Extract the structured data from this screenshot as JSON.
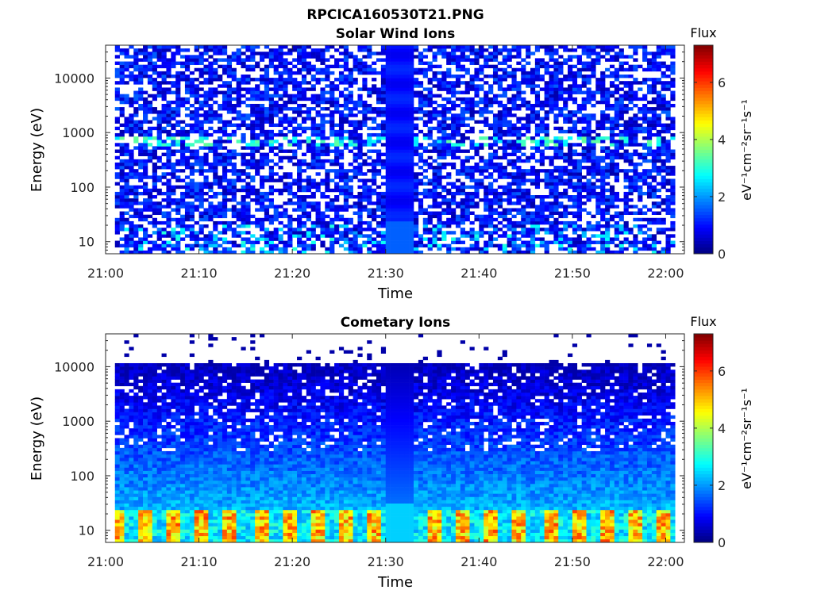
{
  "figure": {
    "title": "RPCICA160530T21.PNG"
  },
  "chart_data": [
    {
      "type": "heatmap",
      "title": "Solar Wind Ions",
      "xlabel": "Time",
      "ylabel": "Energy (eV)",
      "x_ticks": [
        "21:00",
        "21:10",
        "21:20",
        "21:30",
        "21:40",
        "21:50",
        "22:00"
      ],
      "x_range": [
        "21:00",
        "22:02"
      ],
      "y_scale": "log",
      "y_ticks": [
        10,
        100,
        1000,
        10000
      ],
      "y_range": [
        6,
        40000
      ],
      "colorbar": {
        "label": "eV⁻¹cm⁻²sr⁻¹s⁻¹",
        "title": "Flux",
        "range": [
          0,
          7.3
        ],
        "ticks": [
          0,
          2,
          4,
          6
        ],
        "colormap": "jet"
      },
      "data_gap": [
        "21:30",
        "21:33"
      ],
      "features": [
        {
          "description": "low flux background ~0.5-1.5 across all energies"
        },
        {
          "description": "recurring enhanced flux ~3-3.5 near 700 eV"
        },
        {
          "description": "moderate flux ~2.5-3 near 15 eV"
        }
      ],
      "seed": 11
    },
    {
      "type": "heatmap",
      "title": "Cometary Ions",
      "xlabel": "Time",
      "ylabel": "Energy (eV)",
      "x_ticks": [
        "21:00",
        "21:10",
        "21:20",
        "21:30",
        "21:40",
        "21:50",
        "22:00"
      ],
      "x_range": [
        "21:00",
        "22:02"
      ],
      "y_scale": "log",
      "y_ticks": [
        10,
        100,
        1000,
        10000
      ],
      "y_range": [
        6,
        40000
      ],
      "colorbar": {
        "label": "eV⁻¹cm⁻²sr⁻¹s⁻¹",
        "title": "Flux",
        "range": [
          0,
          7.3
        ],
        "ticks": [
          0,
          2,
          4,
          6
        ],
        "colormap": "jet"
      },
      "data_gap": [
        "21:30",
        "21:33"
      ],
      "features": [
        {
          "description": "high flux ~5-6 below 25 eV in periodic bursts"
        },
        {
          "description": "flux decreasing with energy, ~1-2 at 100 eV"
        },
        {
          "description": "very low flux above 10000 eV"
        }
      ],
      "seed": 29
    }
  ]
}
